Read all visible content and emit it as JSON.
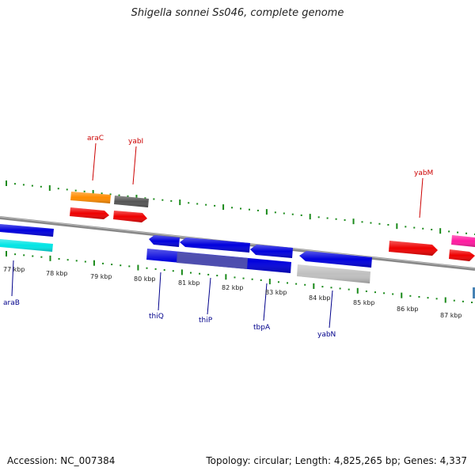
{
  "title": "Shigella sonnei Ss046, complete genome",
  "accession": "Accession: NC_007384",
  "summary": "Topology: circular; Length: 4,825,265 bp; Genes: 4,337",
  "scale_labels": [
    "77 kbp",
    "78 kbp",
    "79 kbp",
    "80 kbp",
    "81 kbp",
    "82 kbp",
    "83 kbp",
    "84 kbp",
    "85 kbp",
    "86 kbp",
    "87 kbp"
  ],
  "gene_labels_top": [
    "araC",
    "yabI",
    "yabM"
  ],
  "gene_labels_bottom": [
    "araB",
    "thiQ",
    "thiP",
    "tbpA",
    "yabN"
  ],
  "colors": {
    "backbone": "#888888",
    "ticks": "#1a8a1a",
    "top_label": "#cc0000",
    "bottom_label": "#00008b",
    "red": "#ee0000",
    "orange": "#ff8c00",
    "gray": "#555555",
    "magenta": "#ff1aa0",
    "blue": "#0000dd",
    "cyan": "#00e5e5",
    "slate": "#5555aa",
    "silver": "#c0c0c0",
    "steel": "#4682b4"
  }
}
